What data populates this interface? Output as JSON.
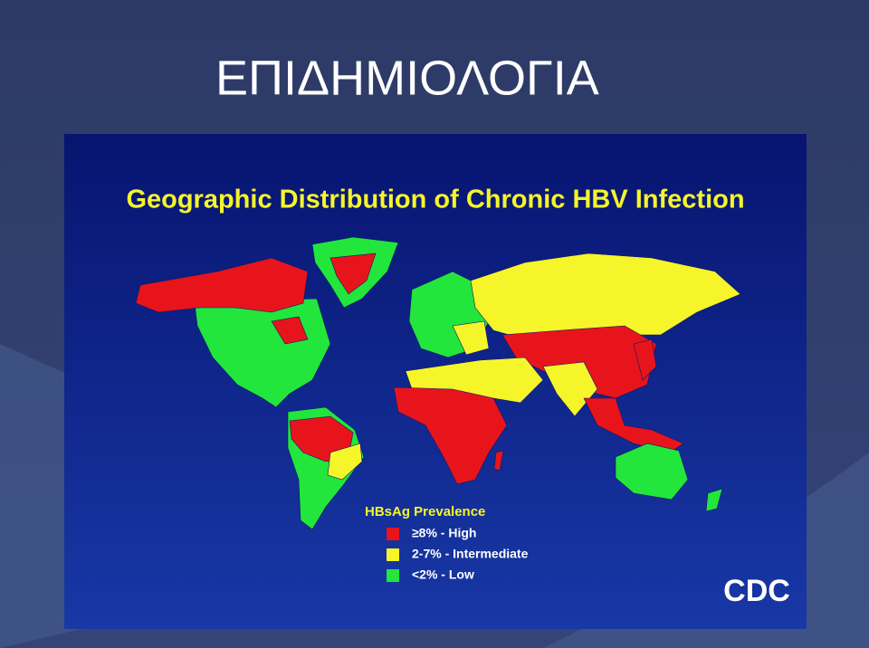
{
  "slide": {
    "title": "ΕΠΙΔΗΜΙΟΛΟΓΙΑ"
  },
  "map": {
    "title": "Geographic Distribution of Chronic HBV Infection",
    "legend": {
      "title": "HBsAg Prevalence",
      "items": [
        {
          "label": "≥8% - High",
          "color": "#e8141c"
        },
        {
          "label": "2-7% - Intermediate",
          "color": "#f5f52a"
        },
        {
          "label": "<2% - Low",
          "color": "#22e63c"
        }
      ]
    },
    "logo": "CDC"
  }
}
